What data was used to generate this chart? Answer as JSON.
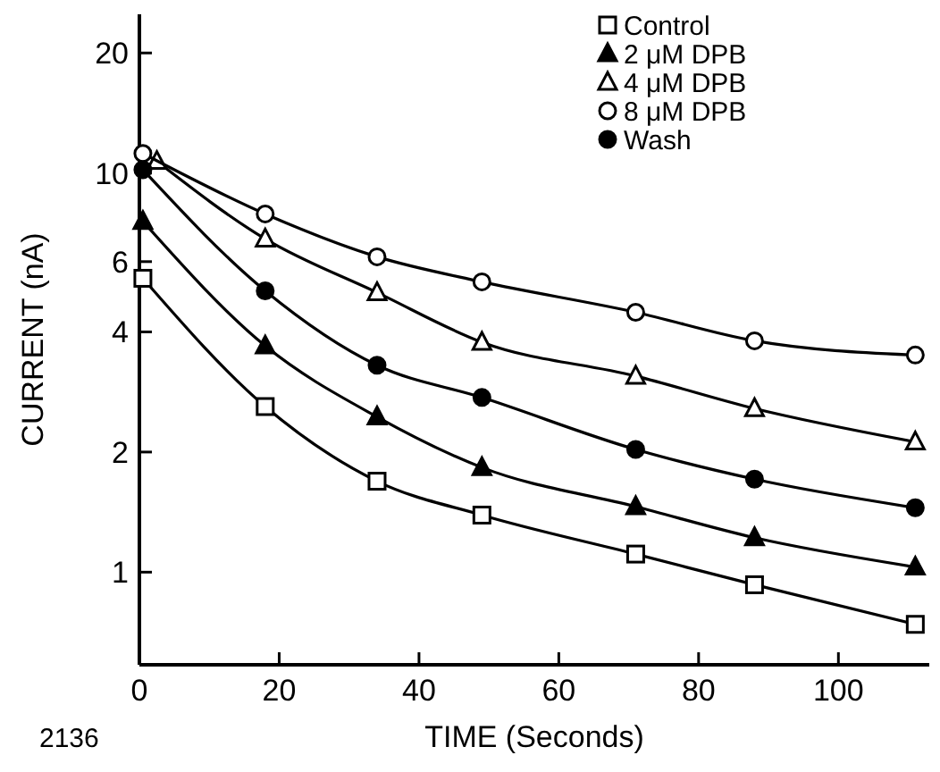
{
  "chart_data": {
    "type": "line",
    "xlabel": "TIME (Seconds)",
    "ylabel": "CURRENT (nA)",
    "log": "y",
    "xlim": [
      0,
      113
    ],
    "xticks": [
      0,
      20,
      40,
      60,
      80,
      100
    ],
    "ylim": [
      0.586,
      25
    ],
    "yticks": [
      1,
      2,
      4,
      6,
      10,
      20
    ],
    "x": [
      0.5,
      18,
      34,
      49,
      71,
      88,
      111
    ],
    "legend": "top right",
    "grid": false,
    "annotations": [
      "2136"
    ],
    "series": [
      {
        "name": "Control",
        "color": "#000000",
        "marker": "square-open",
        "values": [
          5.45,
          2.6,
          1.69,
          1.39,
          1.11,
          0.93,
          0.74
        ]
      },
      {
        "name": "2 μM DPB",
        "color": "#000000",
        "marker": "triangle",
        "values": [
          7.57,
          3.69,
          2.45,
          1.83,
          1.46,
          1.22,
          1.03
        ]
      },
      {
        "name": "4 μM DPB",
        "color": "#000000",
        "marker": "triangle-open",
        "x": [
          2.5,
          18,
          34,
          49,
          71,
          88,
          111
        ],
        "values": [
          10.7,
          6.84,
          5.02,
          3.77,
          3.1,
          2.57,
          2.12
        ]
      },
      {
        "name": "8 μM DPB",
        "color": "#000000",
        "marker": "circle-open",
        "values": [
          11.2,
          7.9,
          6.17,
          5.34,
          4.48,
          3.8,
          3.5
        ]
      },
      {
        "name": "Wash",
        "color": "#000000",
        "marker": "circle",
        "values": [
          10.2,
          5.07,
          3.3,
          2.74,
          2.03,
          1.71,
          1.45
        ]
      }
    ]
  }
}
